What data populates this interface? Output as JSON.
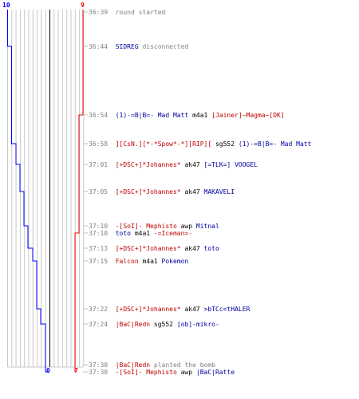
{
  "team_scores": {
    "blue_start": "10",
    "red_start": "9",
    "blue_end": "0",
    "red_end": "7"
  },
  "colors": {
    "blue_team": "#0000a0",
    "red_team": "#c00000",
    "time": "#808080",
    "grid": "#c8c8c8",
    "weapon": "#000000"
  },
  "events": [
    {
      "time": "36:39",
      "parts": [
        {
          "text": "round started",
          "c": "g"
        }
      ]
    },
    {
      "time": "36:44",
      "parts": [
        {
          "text": "SIDREG",
          "c": "blue"
        },
        {
          "text": " disconnected",
          "c": "g"
        }
      ]
    },
    {
      "time": "36:54",
      "parts": [
        {
          "text": "(1)-=B|B=- Mad Matt",
          "c": "blue"
        },
        {
          "text": " m4a1 ",
          "c": "blk"
        },
        {
          "text": "[Jainer]~Magma~[DK]",
          "c": "red"
        }
      ]
    },
    {
      "time": "36:58",
      "parts": [
        {
          "text": "][CsN.][*-*Spow*-*][RIP][",
          "c": "red"
        },
        {
          "text": " sg552 ",
          "c": "blk"
        },
        {
          "text": "(1)-=B|B=- Mad Matt",
          "c": "blue"
        }
      ]
    },
    {
      "time": "37:01",
      "parts": [
        {
          "text": "[+DSC+]*Johannes*",
          "c": "red"
        },
        {
          "text": " ak47 ",
          "c": "blk"
        },
        {
          "text": "[=TLK=] VOOGEL",
          "c": "blue"
        }
      ]
    },
    {
      "time": "37:05",
      "parts": [
        {
          "text": "[+DSC+]*Johannes*",
          "c": "red"
        },
        {
          "text": " ak47 ",
          "c": "blk"
        },
        {
          "text": "MAKAVELI",
          "c": "blue"
        }
      ]
    },
    {
      "time": "37:10",
      "parts": [
        {
          "text": "-[SoI]- Mephisto",
          "c": "red"
        },
        {
          "text": " awp ",
          "c": "blk"
        },
        {
          "text": "Mitnal",
          "c": "blue"
        }
      ]
    },
    {
      "time": "37:10",
      "parts": [
        {
          "text": "toto",
          "c": "blue"
        },
        {
          "text": " m4a1 ",
          "c": "blk"
        },
        {
          "text": "-=Iceman=-",
          "c": "red"
        }
      ]
    },
    {
      "time": "37:13",
      "parts": [
        {
          "text": "[+DSC+]*Johannes*",
          "c": "red"
        },
        {
          "text": " ak47 ",
          "c": "blk"
        },
        {
          "text": "toto",
          "c": "blue"
        }
      ]
    },
    {
      "time": "37:15",
      "parts": [
        {
          "text": "Falcon",
          "c": "red"
        },
        {
          "text": " m4a1 ",
          "c": "blk"
        },
        {
          "text": "Pokemon",
          "c": "blue"
        }
      ]
    },
    {
      "time": "37:22",
      "parts": [
        {
          "text": "[+DSC+]*Johannes*",
          "c": "red"
        },
        {
          "text": " ak47 ",
          "c": "blk"
        },
        {
          "text": ">bTCc<tHALER",
          "c": "blue"
        }
      ]
    },
    {
      "time": "37:24",
      "parts": [
        {
          "text": "|BaC|Redn",
          "c": "red"
        },
        {
          "text": " sg552 ",
          "c": "blk"
        },
        {
          "text": "[ob]-mikro-",
          "c": "blue"
        }
      ]
    },
    {
      "time": "37:30",
      "parts": [
        {
          "text": "|BaC|Redn",
          "c": "red"
        },
        {
          "text": " planted the bomb",
          "c": "g"
        }
      ]
    },
    {
      "time": "37:30",
      "parts": [
        {
          "text": "-[SoI]- Mephisto",
          "c": "red"
        },
        {
          "text": " awp ",
          "c": "blk"
        },
        {
          "text": "|BaC|Ratte",
          "c": "blue"
        }
      ]
    }
  ]
}
